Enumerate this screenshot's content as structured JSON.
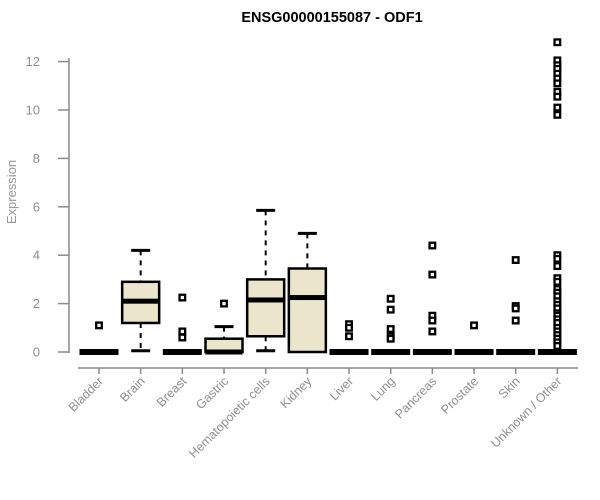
{
  "chart_data": {
    "type": "boxplot",
    "title": "ENSG00000155087 - ODF1",
    "ylabel": "Expression",
    "xlabel": "",
    "ylim": [
      0,
      13
    ],
    "yticks": [
      0,
      2,
      4,
      6,
      8,
      10,
      12
    ],
    "grid": false,
    "legend": false,
    "colors": {
      "box_fill": "#EBE5CB",
      "box_border": "#000000",
      "median": "#000000",
      "outlier": "#000000",
      "axis": "#8a8a8a",
      "tick_label": "#8f8f8f",
      "title": "#000000"
    },
    "categories": [
      "Bladder",
      "Brain",
      "Breast",
      "Gastric",
      "Hematopoietic cells",
      "Kidney",
      "Liver",
      "Lung",
      "Pancreas",
      "Prostate",
      "Skin",
      "Unknown / Other"
    ],
    "boxes": [
      {
        "category": "Bladder",
        "q1": 0,
        "median": 0,
        "q3": 0,
        "whisker_low": 0,
        "whisker_high": 0,
        "outliers": [
          1.1
        ]
      },
      {
        "category": "Brain",
        "q1": 1.2,
        "median": 2.1,
        "q3": 2.9,
        "whisker_low": 0.05,
        "whisker_high": 4.2,
        "outliers": []
      },
      {
        "category": "Breast",
        "q1": 0,
        "median": 0,
        "q3": 0,
        "whisker_low": 0,
        "whisker_high": 0,
        "outliers": [
          2.25,
          0.85,
          0.6
        ]
      },
      {
        "category": "Gastric",
        "q1": 0,
        "median": 0,
        "q3": 0.55,
        "whisker_low": 0,
        "whisker_high": 1.05,
        "outliers": [
          2.0
        ]
      },
      {
        "category": "Hematopoietic cells",
        "q1": 0.65,
        "median": 2.15,
        "q3": 3.0,
        "whisker_low": 0.05,
        "whisker_high": 5.85,
        "outliers": []
      },
      {
        "category": "Kidney",
        "q1": 0,
        "median": 2.25,
        "q3": 3.45,
        "whisker_low": 0,
        "whisker_high": 4.9,
        "outliers": []
      },
      {
        "category": "Liver",
        "q1": 0,
        "median": 0,
        "q3": 0,
        "whisker_low": 0,
        "whisker_high": 0,
        "outliers": [
          1.15,
          1.0,
          0.65
        ]
      },
      {
        "category": "Lung",
        "q1": 0,
        "median": 0,
        "q3": 0,
        "whisker_low": 0,
        "whisker_high": 0,
        "outliers": [
          2.2,
          1.75,
          0.95,
          0.65,
          0.55
        ]
      },
      {
        "category": "Pancreas",
        "q1": 0,
        "median": 0,
        "q3": 0,
        "whisker_low": 0,
        "whisker_high": 0,
        "outliers": [
          4.4,
          3.2,
          1.5,
          1.3,
          0.85
        ]
      },
      {
        "category": "Prostate",
        "q1": 0,
        "median": 0,
        "q3": 0,
        "whisker_low": 0,
        "whisker_high": 0,
        "outliers": [
          1.1
        ]
      },
      {
        "category": "Skin",
        "q1": 0,
        "median": 0,
        "q3": 0,
        "whisker_low": 0,
        "whisker_high": 0,
        "outliers": [
          3.8,
          1.9,
          1.8,
          1.3
        ]
      },
      {
        "category": "Unknown / Other",
        "q1": 0,
        "median": 0,
        "q3": 0,
        "whisker_low": 0,
        "whisker_high": 0,
        "outliers": [
          12.8,
          12.05,
          11.85,
          11.7,
          11.5,
          11.3,
          11.1,
          10.75,
          10.55,
          10.1,
          9.8,
          4.0,
          3.85,
          3.55,
          3.05,
          2.9,
          2.6,
          2.45,
          2.3,
          2.1,
          1.95,
          1.8,
          1.6,
          1.5,
          1.35,
          1.2,
          1.0,
          0.85,
          0.7,
          0.55,
          0.4,
          0.25
        ]
      }
    ]
  }
}
